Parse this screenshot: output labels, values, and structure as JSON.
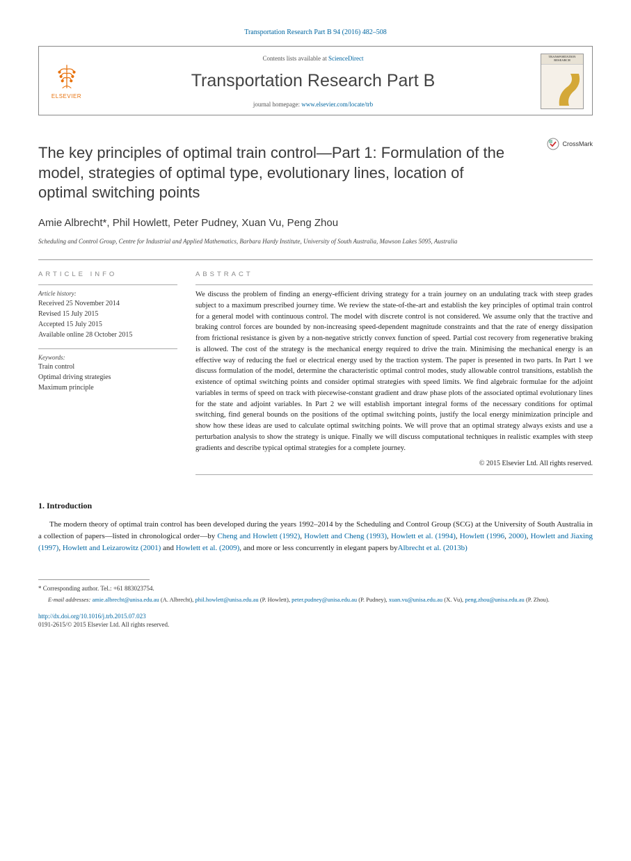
{
  "top_citation": "Transportation Research Part B 94 (2016) 482–508",
  "header": {
    "contents_text": "Contents lists available at ",
    "contents_link": "ScienceDirect",
    "journal": "Transportation Research Part B",
    "homepage_text": "journal homepage: ",
    "homepage_link": "www.elsevier.com/locate/trb",
    "elsevier": "ELSEVIER",
    "cover_title": "TRANSPORTATION RESEARCH"
  },
  "crossmark": "CrossMark",
  "title": "The key principles of optimal train control—Part 1: Formulation of the model, strategies of optimal type, evolutionary lines, location of optimal switching points",
  "authors": "Amie Albrecht*, Phil Howlett, Peter Pudney, Xuan Vu, Peng Zhou",
  "affiliation": "Scheduling and Control Group, Centre for Industrial and Applied Mathematics, Barbara Hardy Institute, University of South Australia, Mawson Lakes 5095, Australia",
  "article_info": {
    "label": "ARTICLE INFO",
    "history_label": "Article history:",
    "history": [
      "Received 25 November 2014",
      "Revised 15 July 2015",
      "Accepted 15 July 2015",
      "Available online 28 October 2015"
    ],
    "keywords_label": "Keywords:",
    "keywords": [
      "Train control",
      "Optimal driving strategies",
      "Maximum principle"
    ]
  },
  "abstract": {
    "label": "ABSTRACT",
    "text": "We discuss the problem of finding an energy-efficient driving strategy for a train journey on an undulating track with steep grades subject to a maximum prescribed journey time. We review the state-of-the-art and establish the key principles of optimal train control for a general model with continuous control. The model with discrete control is not considered. We assume only that the tractive and braking control forces are bounded by non-increasing speed-dependent magnitude constraints and that the rate of energy dissipation from frictional resistance is given by a non-negative strictly convex function of speed. Partial cost recovery from regenerative braking is allowed. The cost of the strategy is the mechanical energy required to drive the train. Minimising the mechanical energy is an effective way of reducing the fuel or electrical energy used by the traction system. The paper is presented in two parts. In Part 1 we discuss formulation of the model, determine the characteristic optimal control modes, study allowable control transitions, establish the existence of optimal switching points and consider optimal strategies with speed limits. We find algebraic formulae for the adjoint variables in terms of speed on track with piecewise-constant gradient and draw phase plots of the associated optimal evolutionary lines for the state and adjoint variables. In Part 2 we will establish important integral forms of the necessary conditions for optimal switching, find general bounds on the positions of the optimal switching points, justify the local energy minimization principle and show how these ideas are used to calculate optimal switching points. We will prove that an optimal strategy always exists and use a perturbation analysis to show the strategy is unique. Finally we will discuss computational techniques in realistic examples with steep gradients and describe typical optimal strategies for a complete journey.",
    "copyright": "© 2015 Elsevier Ltd. All rights reserved."
  },
  "intro": {
    "heading": "1. Introduction",
    "text_parts": [
      "The modern theory of optimal train control has been developed during the years 1992–2014 by the Scheduling and Control Group (SCG) at the University of South Australia in a collection of papers—listed in chronological order—by ",
      ", ",
      ", ",
      ", ",
      ", ",
      ", ",
      ", ",
      " and ",
      ", and more or less concurrently in elegant papers by"
    ],
    "refs": [
      "Cheng and Howlett (1992)",
      "Howlett and Cheng (1993)",
      "Howlett et al. (1994)",
      "Howlett (1996",
      "2000)",
      "Howlett and Jiaxing (1997)",
      "Howlett and Leizarowitz (2001)",
      "Howlett et al. (2009)",
      "Albrecht et al. (2013b)"
    ]
  },
  "footer": {
    "corresp": "* Corresponding author. Tel.: +61 883023754.",
    "email_label": "E-mail addresses:",
    "emails": [
      {
        "addr": "amie.albrecht@unisa.edu.au",
        "name": "(A. Albrecht),"
      },
      {
        "addr": "phil.howlett@unisa.edu.au",
        "name": "(P. Howlett),"
      },
      {
        "addr": "peter.pudney@unisa.edu.au",
        "name": "(P. Pudney),"
      },
      {
        "addr": "xuan.vu@unisa.edu.au",
        "name": "(X. Vu),"
      },
      {
        "addr": "peng.zhou@unisa.edu.au",
        "name": "(P. Zhou)."
      }
    ],
    "doi": "http://dx.doi.org/10.1016/j.trb.2015.07.023",
    "issn": "0191-2615/© 2015 Elsevier Ltd. All rights reserved."
  },
  "colors": {
    "link": "#0066a1",
    "elsevier_orange": "#e8720c",
    "text": "#1a1a1a",
    "heading_gray": "#3a3a3a",
    "border": "#999999"
  }
}
